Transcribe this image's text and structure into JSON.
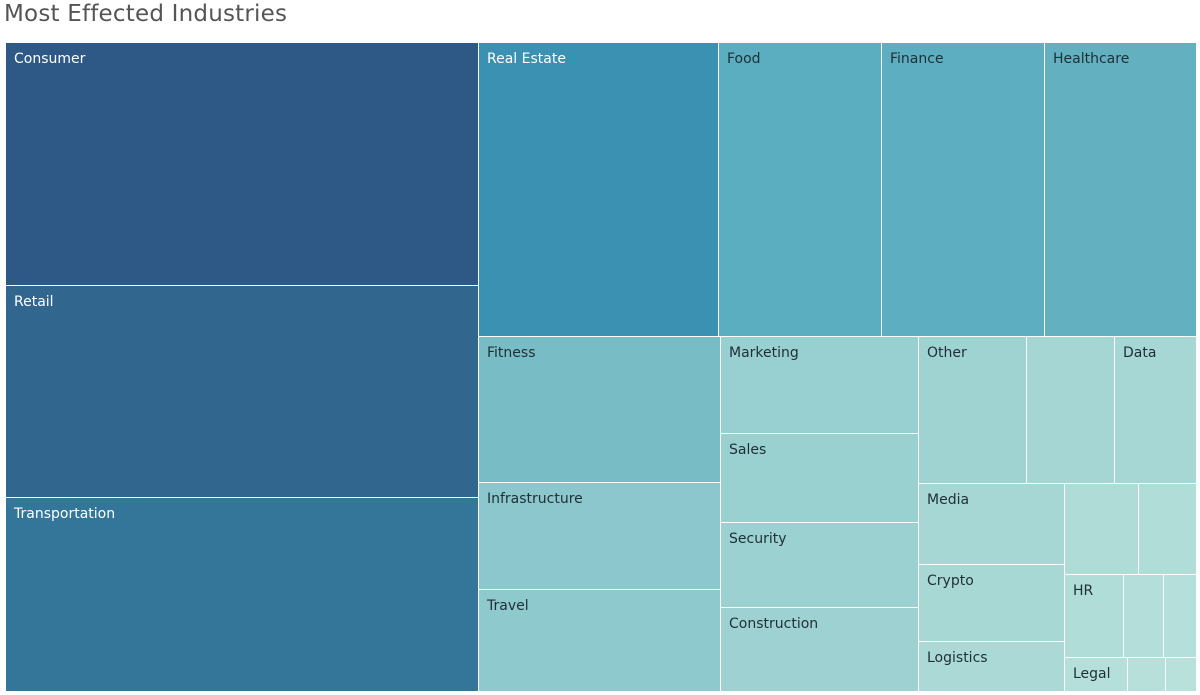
{
  "chart_data": {
    "type": "treemap",
    "title": "Most Effected Industries",
    "items": [
      {
        "name": "Consumer",
        "label": "Consumer",
        "value": 113,
        "color": "#2e5986",
        "text_color": "#ffffff"
      },
      {
        "name": "Retail",
        "label": "Retail",
        "value": 100,
        "color": "#31668e",
        "text_color": "#ffffff"
      },
      {
        "name": "Transportation",
        "label": "Transportation",
        "value": 92,
        "color": "#347699",
        "text_color": "#ffffff"
      },
      {
        "name": "Real Estate",
        "label": "Real Estate",
        "value": 70,
        "color": "#3a91b2",
        "text_color": "#ffffff"
      },
      {
        "name": "Food",
        "label": "Food",
        "value": 48,
        "color": "#5aaec0",
        "text_color": "#1f2f36"
      },
      {
        "name": "Finance",
        "label": "Finance",
        "value": 48,
        "color": "#5caec0",
        "text_color": "#1f2f36"
      },
      {
        "name": "Healthcare",
        "label": "Healthcare",
        "value": 46,
        "color": "#62b0c0",
        "text_color": "#1f2f36"
      },
      {
        "name": "Fitness",
        "label": "Fitness",
        "value": 34,
        "color": "#78bcc6",
        "text_color": "#1f2f36"
      },
      {
        "name": "Infrastructure",
        "label": "Infrastructure",
        "value": 25,
        "color": "#8bc7cc",
        "text_color": "#1f2f36"
      },
      {
        "name": "Travel",
        "label": "Travel",
        "value": 24,
        "color": "#8ec9cd",
        "text_color": "#1f2f36"
      },
      {
        "name": "Marketing",
        "label": "Marketing",
        "value": 19,
        "color": "#98cfd0",
        "text_color": "#1f2f36"
      },
      {
        "name": "Sales",
        "label": "Sales",
        "value": 17,
        "color": "#99d0d0",
        "text_color": "#1f2f36"
      },
      {
        "name": "Security",
        "label": "Security",
        "value": 17,
        "color": "#9bd1d1",
        "text_color": "#1f2f36"
      },
      {
        "name": "Construction",
        "label": "Construction",
        "value": 16,
        "color": "#9ed2d2",
        "text_color": "#1f2f36"
      },
      {
        "name": "Other",
        "label": "Other",
        "value": 15,
        "color": "#9fd3d2",
        "text_color": "#1f2f36"
      },
      {
        "name": "unlabeled-1",
        "label": "",
        "value": 12,
        "color": "#a5d6d3",
        "text_color": "#1f2f36"
      },
      {
        "name": "Data",
        "label": "Data",
        "value": 11,
        "color": "#a6d7d4",
        "text_color": "#1f2f36"
      },
      {
        "name": "Media",
        "label": "Media",
        "value": 10,
        "color": "#a6d7d4",
        "text_color": "#1f2f36"
      },
      {
        "name": "Crypto",
        "label": "Crypto",
        "value": 10,
        "color": "#a8d8d4",
        "text_color": "#1f2f36"
      },
      {
        "name": "Logistics",
        "label": "Logistics",
        "value": 7,
        "color": "#abdad6",
        "text_color": "#1f2f36"
      },
      {
        "name": "unlabeled-2",
        "label": "",
        "value": 6,
        "color": "#afdcd7",
        "text_color": "#1f2f36"
      },
      {
        "name": "unlabeled-3",
        "label": "",
        "value": 5,
        "color": "#b0ddd8",
        "text_color": "#1f2f36"
      },
      {
        "name": "HR",
        "label": "HR",
        "value": 5,
        "color": "#b1ddd8",
        "text_color": "#1f2f36"
      },
      {
        "name": "unlabeled-4",
        "label": "",
        "value": 4,
        "color": "#b3ded9",
        "text_color": "#1f2f36"
      },
      {
        "name": "unlabeled-5",
        "label": "",
        "value": 3,
        "color": "#b4dfda",
        "text_color": "#1f2f36"
      },
      {
        "name": "Legal",
        "label": "Legal",
        "value": 2,
        "color": "#b5dfda",
        "text_color": "#1f2f36"
      },
      {
        "name": "unlabeled-6",
        "label": "",
        "value": 1.5,
        "color": "#b7e0db",
        "text_color": "#1f2f36"
      },
      {
        "name": "unlabeled-7",
        "label": "",
        "value": 1,
        "color": "#b8e1dc",
        "text_color": "#1f2f36"
      }
    ]
  }
}
